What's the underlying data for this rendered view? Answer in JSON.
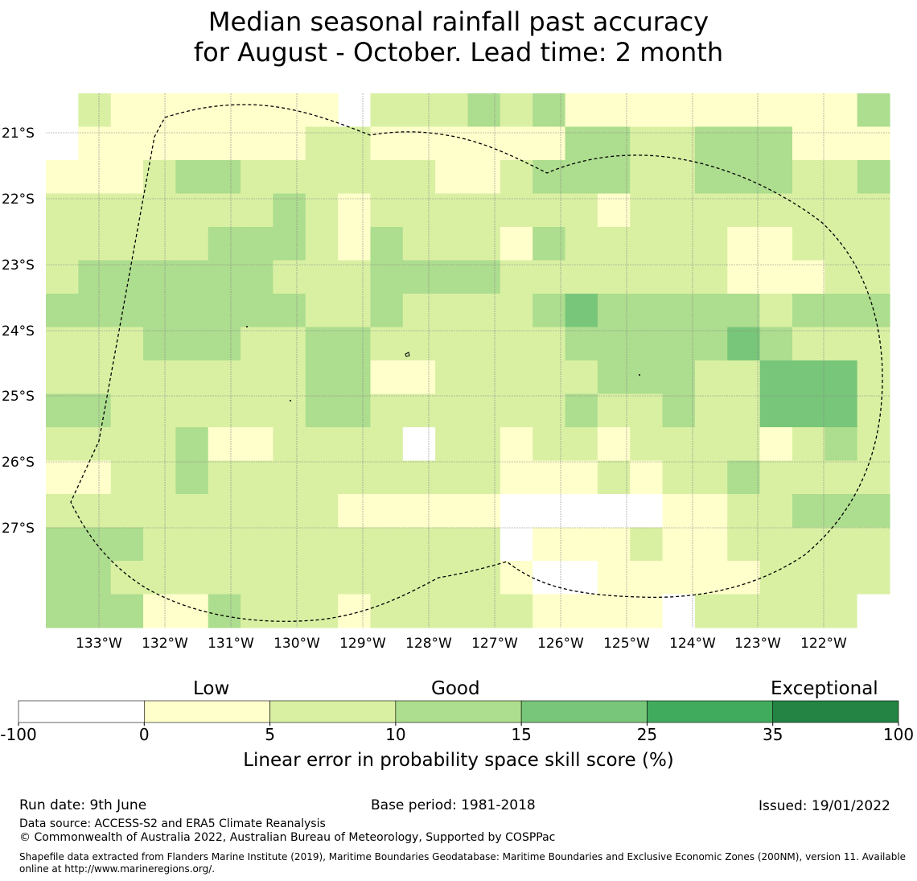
{
  "title": {
    "line1": "Median seasonal rainfall past accuracy",
    "line2": "for August - October. Lead time: 2 month"
  },
  "map": {
    "lat_labels": [
      "21°S",
      "22°S",
      "23°S",
      "24°S",
      "25°S",
      "26°S",
      "27°S"
    ],
    "lon_labels": [
      "133°W",
      "132°W",
      "131°W",
      "130°W",
      "129°W",
      "128°W",
      "127°W",
      "126°W",
      "125°W",
      "124°W",
      "123°W",
      "122°W"
    ],
    "skill_grid_categories": [
      [
        0,
        2,
        1,
        1,
        1,
        1,
        1,
        1,
        1,
        -1,
        2,
        2,
        2,
        3,
        2,
        3,
        1,
        1,
        1,
        1,
        1,
        1,
        1,
        1,
        1,
        3
      ],
      [
        0,
        1,
        1,
        1,
        1,
        1,
        1,
        1,
        2,
        2,
        1,
        1,
        1,
        1,
        1,
        1,
        3,
        3,
        2,
        2,
        3,
        3,
        3,
        1,
        1,
        1
      ],
      [
        1,
        1,
        1,
        2,
        3,
        3,
        2,
        2,
        2,
        2,
        2,
        2,
        1,
        1,
        2,
        3,
        3,
        3,
        2,
        2,
        3,
        3,
        3,
        2,
        2,
        3
      ],
      [
        2,
        2,
        2,
        2,
        2,
        2,
        2,
        3,
        2,
        1,
        2,
        2,
        2,
        2,
        2,
        2,
        2,
        1,
        2,
        2,
        2,
        2,
        2,
        2,
        2,
        2
      ],
      [
        2,
        2,
        2,
        2,
        2,
        3,
        3,
        3,
        2,
        1,
        3,
        2,
        2,
        2,
        1,
        3,
        2,
        2,
        2,
        2,
        2,
        1,
        1,
        2,
        2,
        2
      ],
      [
        2,
        3,
        3,
        3,
        3,
        3,
        3,
        2,
        2,
        2,
        3,
        3,
        3,
        3,
        2,
        2,
        2,
        2,
        2,
        2,
        2,
        1,
        1,
        1,
        2,
        2
      ],
      [
        3,
        3,
        3,
        3,
        3,
        3,
        3,
        3,
        2,
        2,
        3,
        2,
        2,
        2,
        2,
        3,
        4,
        3,
        3,
        3,
        3,
        3,
        2,
        3,
        3,
        3
      ],
      [
        2,
        2,
        2,
        3,
        3,
        3,
        2,
        2,
        3,
        3,
        2,
        2,
        2,
        2,
        2,
        2,
        3,
        3,
        3,
        3,
        3,
        4,
        3,
        2,
        2,
        2
      ],
      [
        2,
        2,
        2,
        2,
        2,
        2,
        2,
        2,
        3,
        3,
        1,
        1,
        2,
        2,
        2,
        2,
        2,
        3,
        3,
        3,
        2,
        2,
        4,
        4,
        4,
        2
      ],
      [
        3,
        3,
        2,
        2,
        2,
        2,
        2,
        2,
        3,
        3,
        2,
        2,
        2,
        2,
        2,
        2,
        3,
        2,
        2,
        3,
        2,
        2,
        4,
        4,
        4,
        2
      ],
      [
        2,
        2,
        2,
        2,
        3,
        1,
        1,
        2,
        2,
        2,
        2,
        0,
        2,
        2,
        1,
        2,
        2,
        1,
        2,
        2,
        2,
        2,
        1,
        2,
        3,
        2
      ],
      [
        1,
        1,
        2,
        2,
        3,
        2,
        2,
        2,
        2,
        2,
        2,
        2,
        2,
        2,
        1,
        1,
        1,
        2,
        1,
        2,
        2,
        3,
        2,
        2,
        2,
        2
      ],
      [
        2,
        2,
        2,
        2,
        2,
        2,
        2,
        2,
        2,
        1,
        1,
        1,
        1,
        1,
        0,
        0,
        0,
        0,
        0,
        1,
        1,
        2,
        2,
        3,
        3,
        3
      ],
      [
        3,
        3,
        3,
        2,
        2,
        2,
        2,
        2,
        2,
        2,
        2,
        2,
        2,
        2,
        0,
        1,
        1,
        1,
        2,
        1,
        1,
        2,
        2,
        2,
        2,
        2
      ],
      [
        3,
        3,
        2,
        2,
        2,
        2,
        2,
        2,
        2,
        2,
        2,
        2,
        2,
        2,
        1,
        0,
        0,
        1,
        1,
        1,
        1,
        1,
        2,
        2,
        2,
        2
      ],
      [
        3,
        3,
        3,
        1,
        1,
        3,
        2,
        2,
        2,
        1,
        2,
        2,
        2,
        2,
        2,
        1,
        1,
        1,
        1,
        0,
        2,
        2,
        2,
        2,
        2,
        0
      ]
    ]
  },
  "colorbar": {
    "category_labels": [
      "Low",
      "Good",
      "Exceptional"
    ],
    "ticks": [
      "-100",
      "0",
      "5",
      "10",
      "15",
      "25",
      "35",
      "100"
    ],
    "colors": [
      "#ffffff",
      "#ffffcc",
      "#d9f0a3",
      "#addd8e",
      "#78c679",
      "#41ab5d",
      "#238443"
    ],
    "title": "Linear error in probability space skill score (%)"
  },
  "footer": {
    "run_date": "Run date: 9th June",
    "base_period": "Base period: 1981-2018",
    "issued": "Issued: 19/01/2022",
    "data_source": "Data source: ACCESS-S2 and ERA5 Climate Reanalysis",
    "copyright": "© Commonwealth of Australia 2022, Australian Bureau of Meteorology, Supported by COSPPac",
    "shapefile": "Shapefile data extracted from Flanders Marine Institute (2019), Maritime Boundaries Geodatabase: Maritime Boundaries and Exclusive Economic Zones (200NM), version 11. Available online at http://www.marineregions.org/."
  }
}
